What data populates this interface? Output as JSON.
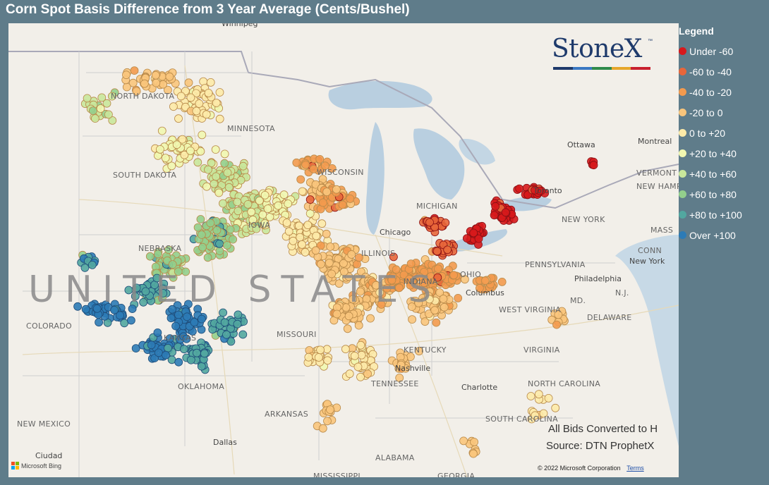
{
  "title": "Corn Spot Basis Difference from 3 Year Average (Cents/Bushel)",
  "legend": {
    "title": "Legend",
    "items": [
      {
        "label": "Under -60",
        "color": "#d7191c"
      },
      {
        "label": "-60 to -40",
        "color": "#e8663a"
      },
      {
        "label": "-40 to -20",
        "color": "#f39a4e"
      },
      {
        "label": "-20 to 0",
        "color": "#f9c57c"
      },
      {
        "label": "0 to +20",
        "color": "#fdeaa8"
      },
      {
        "label": "+20 to +40",
        "color": "#f1f7b0"
      },
      {
        "label": "+40 to +60",
        "color": "#c9e79b"
      },
      {
        "label": "+60 to +80",
        "color": "#93cf8c"
      },
      {
        "label": "+80 to +100",
        "color": "#52a7a0"
      },
      {
        "label": "Over +100",
        "color": "#2c7bb6"
      }
    ]
  },
  "logo": {
    "text": "StoneX",
    "tm": "™",
    "bar_colors": [
      "#1e3a6b",
      "#3a78c2",
      "#2f8a4a",
      "#e6a62b",
      "#c8202e"
    ]
  },
  "notes": {
    "line1": "All Bids Converted to H",
    "line2": "Source: DTN ProphetX"
  },
  "attribution": {
    "microsoft": "Microsoft Bing",
    "copyright": "© 2022 Microsoft Corporation",
    "terms": "Terms"
  },
  "map_labels": {
    "country": "UNITED STATES",
    "states": [
      "NORTH DAKOTA",
      "MINNESOTA",
      "SOUTH DAKOTA",
      "WISCONSIN",
      "MICHIGAN",
      "NEBRASKA",
      "IOWA",
      "ILLINOIS",
      "INDIANA",
      "OHIO",
      "COLORADO",
      "KANSAS",
      "MISSOURI",
      "OKLAHOMA",
      "KENTUCKY",
      "TENNESSEE",
      "ARKANSAS",
      "NEW MEXICO",
      "WEST VIRGINIA",
      "VIRGINIA",
      "NORTH CAROLINA",
      "SOUTH CAROLINA",
      "ALABAMA",
      "GEORGIA",
      "PENNSYLVANIA",
      "NEW YORK",
      "VERMONT",
      "NEW HAMPSHIRE",
      "MASS",
      "CONN",
      "N.J.",
      "MD.",
      "DELAWARE",
      "MISSISSIPPI"
    ],
    "cities": [
      "Winnipeg",
      "Ottawa",
      "Montreal",
      "Chicago",
      "Toronto",
      "Columbus",
      "Philadelphia",
      "New York",
      "Nashville",
      "Charlotte",
      "Dallas",
      "Ciudad"
    ]
  },
  "basis_points": {
    "color_scale": [
      "#d7191c",
      "#e8663a",
      "#f39a4e",
      "#f9c57c",
      "#fdeaa8",
      "#f1f7b0",
      "#c9e79b",
      "#93cf8c",
      "#52a7a0",
      "#2c7bb6"
    ]
  }
}
